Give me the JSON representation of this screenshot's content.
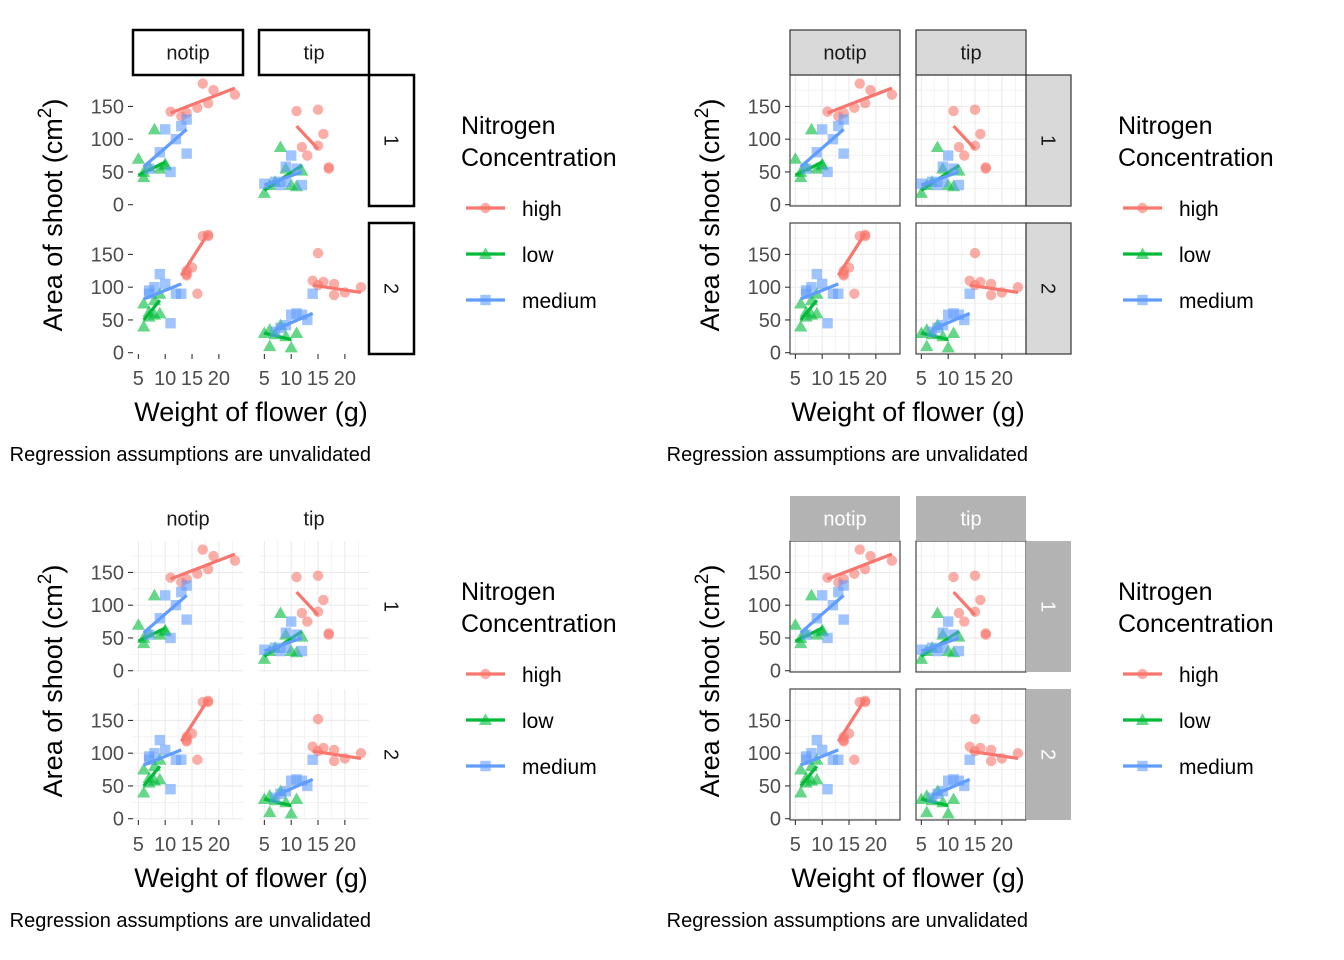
{
  "figure": {
    "caption": "Regression assumptions are unvalidated",
    "xlabel": "Weight of flower (g)",
    "ylabel_text": "Area of shoot (cm",
    "ylabel_sup": "2",
    "ylabel_close": ")",
    "legend_title_line1": "Nitrogen",
    "legend_title_line2": "Concentration",
    "column_strips": [
      "notip",
      "tip"
    ],
    "row_strips": [
      "1",
      "2"
    ],
    "x_ticks": [
      "5",
      "10",
      "15",
      "20"
    ],
    "y_ticks": [
      "0",
      "50",
      "100",
      "150"
    ]
  },
  "legend": [
    {
      "label": "high",
      "color": "#F8766D",
      "shape": "circle"
    },
    {
      "label": "low",
      "color": "#00BA38",
      "shape": "triangle"
    },
    {
      "label": "medium",
      "color": "#619CFF",
      "shape": "square"
    }
  ],
  "variants": [
    {
      "id": "boxed-strips",
      "strip_style": "outlined",
      "gridlines": false,
      "panel_border": false
    },
    {
      "id": "grey-strips-light",
      "strip_style": "light-grey",
      "gridlines": true,
      "panel_border": true
    },
    {
      "id": "no-strip-background",
      "strip_style": "none",
      "gridlines": true,
      "panel_border": false
    },
    {
      "id": "grey-strips-dark",
      "strip_style": "dark-grey",
      "gridlines": true,
      "panel_border": true
    }
  ],
  "chart_data": {
    "type": "scatter",
    "title": "",
    "xlabel": "Weight of flower (g)",
    "ylabel": "Area of shoot (cm2)",
    "xlim": [
      4,
      24.5
    ],
    "ylim": [
      -2,
      198
    ],
    "x_ticks": [
      5,
      10,
      15,
      20
    ],
    "y_ticks": [
      0,
      50,
      100,
      150
    ],
    "grid": true,
    "legend_position": "right",
    "facet_columns": [
      "notip",
      "tip"
    ],
    "facet_rows": [
      "1",
      "2"
    ],
    "panels": [
      {
        "column": "notip",
        "row": "1",
        "series": [
          {
            "name": "high",
            "points": [
              [
                11,
                142
              ],
              [
                13,
                135
              ],
              [
                14,
                140
              ],
              [
                16,
                148
              ],
              [
                17,
                185
              ],
              [
                18,
                155
              ],
              [
                19,
                175
              ],
              [
                23,
                168
              ]
            ],
            "fit": [
              [
                11,
                140
              ],
              [
                23,
                178
              ]
            ]
          },
          {
            "name": "low",
            "points": [
              [
                5,
                70
              ],
              [
                6,
                50
              ],
              [
                6,
                42
              ],
              [
                7,
                58
              ],
              [
                8,
                115
              ],
              [
                9,
                55
              ],
              [
                10,
                62
              ],
              [
                10,
                60
              ]
            ],
            "fit": [
              [
                5,
                45
              ],
              [
                10,
                65
              ]
            ]
          },
          {
            "name": "medium",
            "points": [
              [
                7,
                55
              ],
              [
                9,
                80
              ],
              [
                10,
                115
              ],
              [
                11,
                50
              ],
              [
                12,
                100
              ],
              [
                13,
                120
              ],
              [
                14,
                130
              ],
              [
                14,
                78
              ]
            ],
            "fit": [
              [
                6,
                58
              ],
              [
                14,
                115
              ]
            ]
          }
        ]
      },
      {
        "column": "tip",
        "row": "1",
        "series": [
          {
            "name": "high",
            "points": [
              [
                11,
                143
              ],
              [
                12,
                88
              ],
              [
                13,
                75
              ],
              [
                15,
                145
              ],
              [
                15,
                90
              ],
              [
                16,
                108
              ],
              [
                17,
                57
              ],
              [
                17,
                55
              ]
            ],
            "fit": [
              [
                11,
                120
              ],
              [
                15,
                85
              ]
            ]
          },
          {
            "name": "low",
            "points": [
              [
                5,
                18
              ],
              [
                6,
                30
              ],
              [
                7,
                35
              ],
              [
                8,
                88
              ],
              [
                9,
                55
              ],
              [
                10,
                30
              ],
              [
                11,
                28
              ],
              [
                12,
                52
              ]
            ],
            "fit": [
              [
                5,
                22
              ],
              [
                12,
                60
              ]
            ]
          },
          {
            "name": "medium",
            "points": [
              [
                5,
                32
              ],
              [
                7,
                35
              ],
              [
                8,
                30
              ],
              [
                9,
                35
              ],
              [
                9,
                58
              ],
              [
                10,
                75
              ],
              [
                11,
                55
              ],
              [
                12,
                30
              ]
            ],
            "fit": [
              [
                5,
                30
              ],
              [
                12,
                50
              ]
            ]
          }
        ]
      },
      {
        "column": "notip",
        "row": "2",
        "series": [
          {
            "name": "high",
            "points": [
              [
                14,
                125
              ],
              [
                14,
                120
              ],
              [
                14,
                118
              ],
              [
                15,
                130
              ],
              [
                16,
                90
              ],
              [
                17,
                178
              ],
              [
                18,
                180
              ],
              [
                18,
                178
              ]
            ],
            "fit": [
              [
                13,
                118
              ],
              [
                18,
                182
              ]
            ]
          },
          {
            "name": "low",
            "points": [
              [
                6,
                40
              ],
              [
                6,
                75
              ],
              [
                7,
                62
              ],
              [
                7,
                55
              ],
              [
                8,
                58
              ],
              [
                8,
                80
              ],
              [
                9,
                90
              ],
              [
                9,
                60
              ]
            ],
            "fit": [
              [
                6,
                50
              ],
              [
                9,
                80
              ]
            ]
          },
          {
            "name": "medium",
            "points": [
              [
                7,
                90
              ],
              [
                7,
                95
              ],
              [
                8,
                100
              ],
              [
                9,
                120
              ],
              [
                10,
                105
              ],
              [
                11,
                45
              ],
              [
                12,
                90
              ],
              [
                13,
                90
              ]
            ],
            "fit": [
              [
                6,
                82
              ],
              [
                13,
                105
              ]
            ]
          }
        ]
      },
      {
        "column": "tip",
        "row": "2",
        "series": [
          {
            "name": "high",
            "points": [
              [
                14,
                110
              ],
              [
                15,
                152
              ],
              [
                15,
                103
              ],
              [
                16,
                108
              ],
              [
                18,
                105
              ],
              [
                18,
                88
              ],
              [
                20,
                92
              ],
              [
                23,
                100
              ]
            ],
            "fit": [
              [
                14,
                103
              ],
              [
                23,
                92
              ]
            ]
          },
          {
            "name": "low",
            "points": [
              [
                5,
                30
              ],
              [
                6,
                35
              ],
              [
                6,
                10
              ],
              [
                7,
                28
              ],
              [
                8,
                42
              ],
              [
                9,
                25
              ],
              [
                10,
                8
              ],
              [
                11,
                30
              ]
            ],
            "fit": [
              [
                5,
                30
              ],
              [
                10,
                20
              ]
            ]
          },
          {
            "name": "medium",
            "points": [
              [
                7,
                32
              ],
              [
                8,
                38
              ],
              [
                9,
                42
              ],
              [
                10,
                58
              ],
              [
                11,
                60
              ],
              [
                12,
                58
              ],
              [
                13,
                50
              ],
              [
                14,
                90
              ]
            ],
            "fit": [
              [
                7,
                35
              ],
              [
                14,
                60
              ]
            ]
          }
        ]
      }
    ]
  }
}
